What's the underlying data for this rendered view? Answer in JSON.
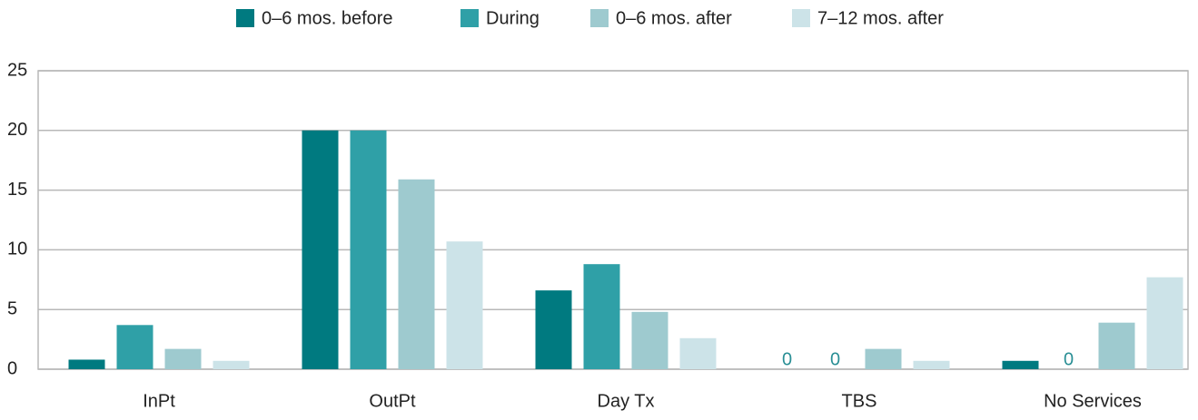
{
  "chart_data": {
    "type": "bar",
    "categories": [
      "InPt",
      "OutPt",
      "Day Tx",
      "TBS",
      "No Services"
    ],
    "series": [
      {
        "name": "0–6 mos. before",
        "color": "#007a80",
        "values": [
          0.8,
          20,
          6.6,
          0,
          0.7
        ]
      },
      {
        "name": "During",
        "color": "#2fa0a7",
        "values": [
          3.7,
          20,
          8.8,
          0,
          0
        ]
      },
      {
        "name": "0–6 mos. after",
        "color": "#9ecacf",
        "values": [
          1.7,
          15.9,
          4.8,
          1.7,
          3.9
        ]
      },
      {
        "name": "7–12 mos. after",
        "color": "#cce3e8",
        "values": [
          0.7,
          10.7,
          2.6,
          0.7,
          7.7
        ]
      }
    ],
    "ylim": [
      0,
      25
    ],
    "yticks": [
      0,
      5,
      10,
      15,
      20,
      25
    ],
    "grid": true,
    "legend": "top"
  }
}
